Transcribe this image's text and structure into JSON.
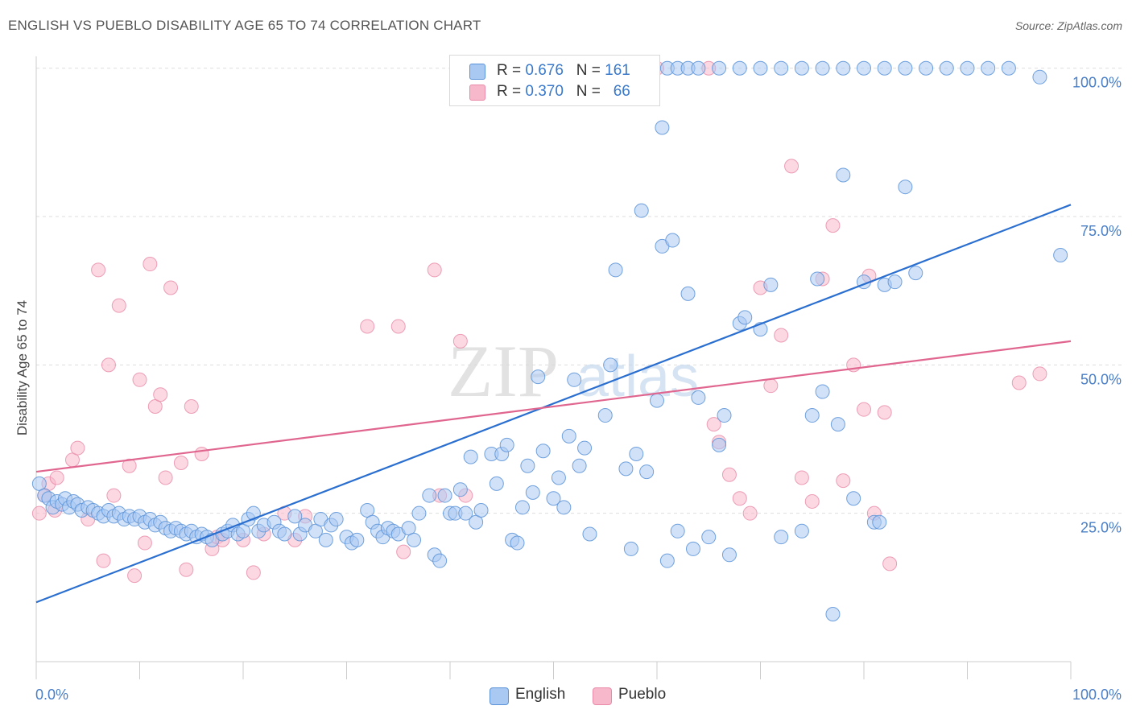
{
  "header": {
    "title": "ENGLISH VS PUEBLO DISABILITY AGE 65 TO 74 CORRELATION CHART",
    "source": "Source: ZipAtlas.com"
  },
  "watermark": {
    "zip": "ZIP",
    "atlas": "atlas"
  },
  "legend": {
    "english": {
      "r_label": "R =",
      "r_value": "0.676",
      "n_label": "N =",
      "n_value": "161"
    },
    "pueblo": {
      "r_label": "R =",
      "r_value": "0.370",
      "n_label": "N =",
      "n_value": "66"
    }
  },
  "bottom_legend": {
    "english": "English",
    "pueblo": "Pueblo"
  },
  "colors": {
    "english_fill": "#a9c8f2",
    "english_stroke": "#5b93d8",
    "english_line": "#2a6fd0",
    "pueblo_fill": "#f7b8cb",
    "pueblo_stroke": "#e98aa8",
    "pueblo_line": "#e0668f",
    "tick_label": "#4a7fc8",
    "grid": "#dddddd"
  },
  "chart_data": {
    "type": "scatter",
    "title": "ENGLISH VS PUEBLO DISABILITY AGE 65 TO 74 CORRELATION CHART",
    "xlabel": "",
    "ylabel": "Disability Age 65 to 74",
    "xlim": [
      0,
      100
    ],
    "ylim": [
      0,
      102
    ],
    "x_tick_labels": [
      "0.0%",
      "100.0%"
    ],
    "y_ticks": [
      25,
      50,
      75,
      100
    ],
    "y_tick_labels": [
      "25.0%",
      "50.0%",
      "75.0%",
      "100.0%"
    ],
    "grid": true,
    "legend_position": "top-center",
    "series": [
      {
        "name": "English",
        "r": 0.676,
        "n": 161,
        "trend": {
          "x": [
            0,
            100
          ],
          "y": [
            10,
            77
          ]
        },
        "points": [
          [
            0.3,
            30
          ],
          [
            0.8,
            28
          ],
          [
            1.2,
            27.5
          ],
          [
            1.6,
            26
          ],
          [
            2.0,
            27
          ],
          [
            2.5,
            26.5
          ],
          [
            2.8,
            27.5
          ],
          [
            3.2,
            26
          ],
          [
            3.6,
            27
          ],
          [
            4.0,
            26.5
          ],
          [
            4.4,
            25.5
          ],
          [
            5.0,
            26
          ],
          [
            5.5,
            25.5
          ],
          [
            6.0,
            25
          ],
          [
            6.5,
            24.5
          ],
          [
            7.0,
            25.5
          ],
          [
            7.5,
            24.5
          ],
          [
            8.0,
            25
          ],
          [
            8.5,
            24
          ],
          [
            9.0,
            24.5
          ],
          [
            9.5,
            24
          ],
          [
            10.0,
            24.5
          ],
          [
            10.5,
            23.5
          ],
          [
            11.0,
            24
          ],
          [
            11.5,
            23
          ],
          [
            12.0,
            23.5
          ],
          [
            12.5,
            22.5
          ],
          [
            13.0,
            22
          ],
          [
            13.5,
            22.5
          ],
          [
            14.0,
            22
          ],
          [
            14.5,
            21.5
          ],
          [
            15.0,
            22
          ],
          [
            15.5,
            21
          ],
          [
            16.0,
            21.5
          ],
          [
            16.5,
            21
          ],
          [
            17.0,
            20.5
          ],
          [
            18.0,
            21.5
          ],
          [
            18.5,
            22
          ],
          [
            19.0,
            23
          ],
          [
            19.5,
            21.5
          ],
          [
            20.0,
            22
          ],
          [
            20.5,
            24
          ],
          [
            21.0,
            25
          ],
          [
            21.5,
            22
          ],
          [
            22.0,
            23
          ],
          [
            23.0,
            23.5
          ],
          [
            23.5,
            22
          ],
          [
            24.0,
            21.5
          ],
          [
            25.0,
            24.5
          ],
          [
            25.5,
            21.5
          ],
          [
            26.0,
            23
          ],
          [
            27.0,
            22
          ],
          [
            27.5,
            24
          ],
          [
            28.0,
            20.5
          ],
          [
            28.5,
            23
          ],
          [
            29.0,
            24
          ],
          [
            30.0,
            21
          ],
          [
            30.5,
            20
          ],
          [
            31.0,
            20.5
          ],
          [
            32.0,
            25.5
          ],
          [
            32.5,
            23.5
          ],
          [
            33.0,
            22
          ],
          [
            33.5,
            21
          ],
          [
            34.0,
            22.5
          ],
          [
            34.5,
            22
          ],
          [
            35.0,
            21.5
          ],
          [
            36.0,
            22.5
          ],
          [
            36.5,
            20.5
          ],
          [
            37.0,
            25
          ],
          [
            38.0,
            28
          ],
          [
            38.5,
            18
          ],
          [
            39.0,
            17
          ],
          [
            39.5,
            28
          ],
          [
            40.0,
            25
          ],
          [
            40.5,
            25
          ],
          [
            41.0,
            29
          ],
          [
            41.5,
            25
          ],
          [
            42.0,
            34.5
          ],
          [
            42.5,
            23.5
          ],
          [
            43.0,
            25.5
          ],
          [
            44.0,
            35
          ],
          [
            44.5,
            30
          ],
          [
            45.0,
            35
          ],
          [
            45.5,
            36.5
          ],
          [
            46.0,
            20.5
          ],
          [
            46.5,
            20
          ],
          [
            47.0,
            26
          ],
          [
            47.5,
            33
          ],
          [
            48.0,
            28.5
          ],
          [
            48.5,
            48
          ],
          [
            49.0,
            35.5
          ],
          [
            50.0,
            27.5
          ],
          [
            50.5,
            31
          ],
          [
            51.0,
            26
          ],
          [
            51.5,
            38
          ],
          [
            52.0,
            47.5
          ],
          [
            52.5,
            33
          ],
          [
            53.0,
            36
          ],
          [
            53.5,
            21.5
          ],
          [
            55.0,
            41.5
          ],
          [
            55.5,
            50
          ],
          [
            56.0,
            66
          ],
          [
            57.0,
            32.5
          ],
          [
            57.5,
            19
          ],
          [
            58.0,
            35
          ],
          [
            58.5,
            76
          ],
          [
            59.0,
            32
          ],
          [
            60.0,
            44
          ],
          [
            60.5,
            70
          ],
          [
            61.0,
            17
          ],
          [
            61.5,
            71
          ],
          [
            62.0,
            22
          ],
          [
            63.0,
            62
          ],
          [
            63.5,
            19
          ],
          [
            64.0,
            44.5
          ],
          [
            65.0,
            21
          ],
          [
            66.0,
            36.5
          ],
          [
            66.5,
            41.5
          ],
          [
            67.0,
            18
          ],
          [
            68.0,
            57
          ],
          [
            68.5,
            58
          ],
          [
            70.0,
            56
          ],
          [
            71.0,
            63.5
          ],
          [
            72.0,
            21
          ],
          [
            74.0,
            22
          ],
          [
            75.0,
            41.5
          ],
          [
            75.5,
            64.5
          ],
          [
            76.0,
            45.5
          ],
          [
            77.0,
            8
          ],
          [
            77.5,
            40
          ],
          [
            78.0,
            82
          ],
          [
            79.0,
            27.5
          ],
          [
            80.0,
            64
          ],
          [
            81.0,
            23.5
          ],
          [
            81.5,
            23.5
          ],
          [
            82.0,
            63.5
          ],
          [
            83.0,
            64
          ],
          [
            84.0,
            80
          ],
          [
            85.0,
            65.5
          ],
          [
            60.5,
            90
          ],
          [
            61.0,
            100
          ],
          [
            62.0,
            100
          ],
          [
            63.0,
            100
          ],
          [
            64.0,
            100
          ],
          [
            66.0,
            100
          ],
          [
            68.0,
            100
          ],
          [
            70.0,
            100
          ],
          [
            72.0,
            100
          ],
          [
            74.0,
            100
          ],
          [
            76.0,
            100
          ],
          [
            78.0,
            100
          ],
          [
            80.0,
            100
          ],
          [
            82.0,
            100
          ],
          [
            84.0,
            100
          ],
          [
            86.0,
            100
          ],
          [
            88.0,
            100
          ],
          [
            90.0,
            100
          ],
          [
            92.0,
            100
          ],
          [
            94.0,
            100
          ],
          [
            97.0,
            98.5
          ],
          [
            99.0,
            68.5
          ]
        ],
        "note_points_count": "161 per legend"
      },
      {
        "name": "Pueblo",
        "r": 0.37,
        "n": 66,
        "trend": {
          "x": [
            0,
            100
          ],
          "y": [
            32,
            54
          ]
        },
        "points": [
          [
            0.3,
            25
          ],
          [
            0.8,
            28
          ],
          [
            1.2,
            30
          ],
          [
            1.8,
            25.5
          ],
          [
            2.0,
            31
          ],
          [
            3.5,
            34
          ],
          [
            4.0,
            36
          ],
          [
            5.0,
            24
          ],
          [
            6.0,
            66
          ],
          [
            6.5,
            17
          ],
          [
            7.0,
            50
          ],
          [
            7.5,
            28
          ],
          [
            8.0,
            60
          ],
          [
            9.0,
            33
          ],
          [
            9.5,
            14.5
          ],
          [
            10.0,
            47.5
          ],
          [
            10.5,
            20
          ],
          [
            11.0,
            67
          ],
          [
            11.5,
            43
          ],
          [
            12.0,
            45
          ],
          [
            12.5,
            31
          ],
          [
            13.0,
            63
          ],
          [
            14.0,
            33.5
          ],
          [
            14.5,
            15.5
          ],
          [
            15.0,
            43
          ],
          [
            16.0,
            35
          ],
          [
            17.0,
            19
          ],
          [
            17.5,
            21
          ],
          [
            18.0,
            20.5
          ],
          [
            20.0,
            20.5
          ],
          [
            21.0,
            15
          ],
          [
            22.0,
            21.5
          ],
          [
            24.0,
            25
          ],
          [
            25.0,
            20.5
          ],
          [
            26.0,
            24.5
          ],
          [
            32.0,
            56.5
          ],
          [
            35.0,
            56.5
          ],
          [
            35.5,
            18.5
          ],
          [
            38.5,
            66
          ],
          [
            39.0,
            28
          ],
          [
            41.0,
            54
          ],
          [
            41.5,
            28
          ],
          [
            60.0,
            100
          ],
          [
            65.0,
            100
          ],
          [
            65.5,
            40
          ],
          [
            66.0,
            37
          ],
          [
            67.0,
            31.5
          ],
          [
            68.0,
            27.5
          ],
          [
            69.0,
            25
          ],
          [
            70.0,
            63
          ],
          [
            71.0,
            46.5
          ],
          [
            72.0,
            55
          ],
          [
            73.0,
            83.5
          ],
          [
            74.0,
            31
          ],
          [
            75.0,
            27
          ],
          [
            76.0,
            64.5
          ],
          [
            77.0,
            73.5
          ],
          [
            78.0,
            30.5
          ],
          [
            79.0,
            50
          ],
          [
            80.0,
            42.5
          ],
          [
            80.5,
            65
          ],
          [
            81.0,
            25
          ],
          [
            82.0,
            42
          ],
          [
            82.5,
            16.5
          ],
          [
            95.0,
            47
          ],
          [
            97.0,
            48.5
          ]
        ]
      }
    ]
  }
}
